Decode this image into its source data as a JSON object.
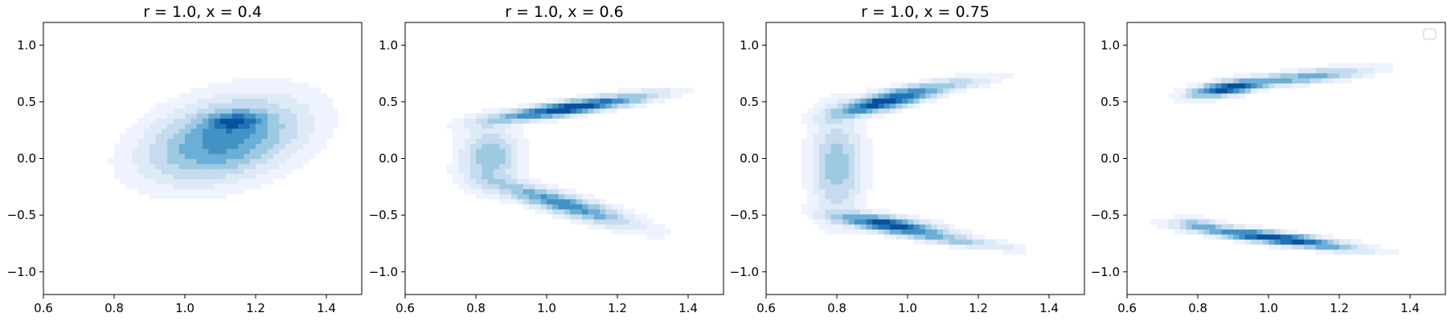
{
  "figure": {
    "background": "#ffffff"
  },
  "chart_data": [
    {
      "type": "density",
      "title": "r = 1.0, x = 0.4",
      "xlim": [
        0.6,
        1.5
      ],
      "ylim": [
        -1.2,
        1.2
      ],
      "xticks": [
        0.6,
        0.8,
        1.0,
        1.2,
        1.4
      ],
      "xtick_labels": [
        "0.6",
        "0.8",
        "1.0",
        "1.2",
        "1.4"
      ],
      "yticks": [
        1.0,
        0.5,
        0.0,
        -0.5,
        -1.0
      ],
      "ytick_labels": [
        "1.0",
        "0.5",
        "0.0",
        "−0.5",
        "−1.0"
      ],
      "colormap": "Blues",
      "levels": [
        "#eff3ff",
        "#deebf7",
        "#c6dbef",
        "#9ecae1",
        "#6baed6",
        "#4292c6",
        "#2171b5",
        "#08519c"
      ],
      "legend": false,
      "clusters": [
        {
          "cx": 1.11,
          "cy": 0.17,
          "sx": 0.13,
          "sy": 0.22,
          "rho": 0.35,
          "w": 1.0
        },
        {
          "cx": 1.14,
          "cy": 0.33,
          "sx": 0.045,
          "sy": 0.05,
          "rho": 0.2,
          "w": 0.9
        }
      ]
    },
    {
      "type": "density",
      "title": "r = 1.0, x = 0.6",
      "xlim": [
        0.6,
        1.5
      ],
      "ylim": [
        -1.2,
        1.2
      ],
      "xticks": [
        0.6,
        0.8,
        1.0,
        1.2,
        1.4
      ],
      "xtick_labels": [
        "0.6",
        "0.8",
        "1.0",
        "1.2",
        "1.4"
      ],
      "yticks": [
        1.0,
        0.5,
        0.0,
        -0.5,
        -1.0
      ],
      "ytick_labels": [
        "1.0",
        "0.5",
        "0.0",
        "−0.5",
        "−1.0"
      ],
      "colormap": "Blues",
      "levels": [
        "#eff3ff",
        "#deebf7",
        "#c6dbef",
        "#9ecae1",
        "#6baed6",
        "#4292c6",
        "#2171b5",
        "#08519c"
      ],
      "legend": false,
      "clusters": [
        {
          "cx": 1.07,
          "cy": 0.45,
          "sx": 0.13,
          "sy": 0.07,
          "rho": 0.85,
          "w": 1.0
        },
        {
          "cx": 1.05,
          "cy": -0.4,
          "sx": 0.12,
          "sy": 0.12,
          "rho": -0.88,
          "w": 0.6
        },
        {
          "cx": 0.84,
          "cy": 0.02,
          "sx": 0.05,
          "sy": 0.17,
          "rho": 0.0,
          "w": 0.35
        }
      ]
    },
    {
      "type": "density",
      "title": "r = 1.0, x = 0.75",
      "xlim": [
        0.6,
        1.5
      ],
      "ylim": [
        -1.2,
        1.2
      ],
      "xticks": [
        0.6,
        0.8,
        1.0,
        1.2,
        1.4
      ],
      "xtick_labels": [
        "0.6",
        "0.8",
        "1.0",
        "1.2",
        "1.4"
      ],
      "yticks": [
        1.0,
        0.5,
        0.0,
        -0.5,
        -1.0
      ],
      "ytick_labels": [
        "1.0",
        "0.5",
        "0.0",
        "−0.5",
        "−1.0"
      ],
      "colormap": "Blues",
      "levels": [
        "#eff3ff",
        "#deebf7",
        "#c6dbef",
        "#9ecae1",
        "#6baed6",
        "#4292c6",
        "#2171b5",
        "#08519c"
      ],
      "legend": false,
      "clusters": [
        {
          "cx": 0.93,
          "cy": 0.5,
          "sx": 0.08,
          "sy": 0.07,
          "rho": 0.75,
          "w": 1.0
        },
        {
          "cx": 1.08,
          "cy": 0.63,
          "sx": 0.1,
          "sy": 0.06,
          "rho": 0.8,
          "w": 0.3
        },
        {
          "cx": 0.95,
          "cy": -0.58,
          "sx": 0.09,
          "sy": 0.06,
          "rho": -0.7,
          "w": 1.0
        },
        {
          "cx": 1.14,
          "cy": -0.72,
          "sx": 0.1,
          "sy": 0.05,
          "rho": -0.8,
          "w": 0.3
        },
        {
          "cx": 0.8,
          "cy": -0.05,
          "sx": 0.045,
          "sy": 0.28,
          "rho": 0.0,
          "w": 0.35
        }
      ]
    },
    {
      "type": "density",
      "title": "",
      "xlim": [
        0.6,
        1.5
      ],
      "ylim": [
        -1.2,
        1.2
      ],
      "xticks": [
        0.6,
        0.8,
        1.0,
        1.2,
        1.4
      ],
      "xtick_labels": [
        "0.6",
        "0.8",
        "1.0",
        "1.2",
        "1.4"
      ],
      "yticks": [
        1.0,
        0.5,
        0.0,
        -0.5,
        -1.0
      ],
      "ytick_labels": [
        "1.0",
        "0.5",
        "0.0",
        "−0.5",
        "−1.0"
      ],
      "colormap": "Blues",
      "levels": [
        "#eff3ff",
        "#deebf7",
        "#c6dbef",
        "#9ecae1",
        "#6baed6",
        "#4292c6",
        "#2171b5",
        "#08519c"
      ],
      "legend": true,
      "legend_position": "top-right",
      "clusters": [
        {
          "cx": 0.88,
          "cy": 0.62,
          "sx": 0.06,
          "sy": 0.045,
          "rho": 0.6,
          "w": 1.0
        },
        {
          "cx": 1.1,
          "cy": 0.72,
          "sx": 0.11,
          "sy": 0.05,
          "rho": 0.7,
          "w": 0.45
        },
        {
          "cx": 1.02,
          "cy": -0.7,
          "sx": 0.13,
          "sy": 0.06,
          "rho": -0.85,
          "w": 1.0
        },
        {
          "cx": 0.8,
          "cy": -0.58,
          "sx": 0.04,
          "sy": 0.035,
          "rho": -0.3,
          "w": 0.3
        }
      ]
    }
  ]
}
